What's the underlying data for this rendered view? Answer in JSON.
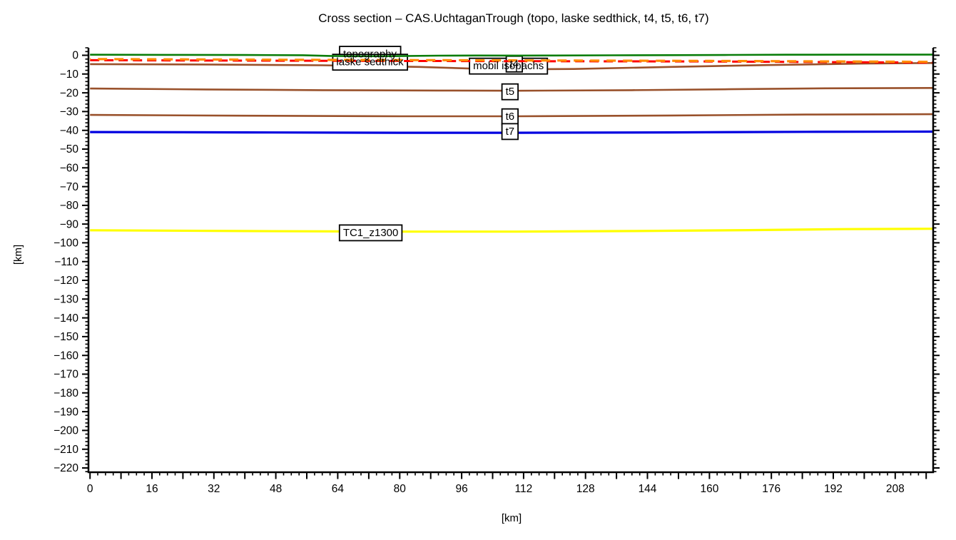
{
  "title": "Cross section – CAS.UchtaganTrough (topo, laske sedthick, t4, t5, t6, t7)",
  "chart_data": {
    "type": "line",
    "title": "Cross section – CAS.UchtaganTrough (topo, laske sedthick, t4, t5, t6, t7)",
    "xlabel": "[km]",
    "ylabel": "[km]",
    "xlim": [
      -0.4,
      217.8
    ],
    "ylim": [
      -222.3,
      4
    ],
    "grid": false,
    "legend_position": "none",
    "x_ticks": {
      "labeled_values": [
        0,
        16,
        32,
        48,
        64,
        80,
        96,
        112,
        128,
        144,
        160,
        176,
        192,
        208
      ],
      "labels": [
        "0",
        "16",
        "32",
        "48",
        "64",
        "80",
        "96",
        "112",
        "128",
        "144",
        "160",
        "176",
        "192",
        "208"
      ],
      "medium_step": 8,
      "minor_step": 2
    },
    "y_ticks": {
      "labeled_values": [
        0,
        -10,
        -20,
        -30,
        -40,
        -50,
        -60,
        -70,
        -80,
        -90,
        -100,
        -110,
        -120,
        -130,
        -140,
        -150,
        -160,
        -170,
        -180,
        -190,
        -200,
        -210,
        -220
      ],
      "labels": [
        "0",
        "−10",
        "−20",
        "−30",
        "−40",
        "−50",
        "−60",
        "−70",
        "−80",
        "−90",
        "−100",
        "−110",
        "−120",
        "−130",
        "−140",
        "−150",
        "−160",
        "−170",
        "−180",
        "−190",
        "−200",
        "−210",
        "−220"
      ],
      "minor_step": 2
    },
    "series": [
      {
        "name": "t4",
        "color": "#99512b",
        "style": "solid",
        "width": 2.6,
        "layer": "below",
        "points": [
          [
            0,
            -4.7
          ],
          [
            30,
            -4.9
          ],
          [
            60,
            -5.3
          ],
          [
            85,
            -6.2
          ],
          [
            105,
            -7.5
          ],
          [
            125,
            -7.3
          ],
          [
            150,
            -6.2
          ],
          [
            175,
            -5.2
          ],
          [
            200,
            -4.4
          ],
          [
            217.8,
            -4.1
          ]
        ]
      },
      {
        "name": "t5",
        "color": "#99512b",
        "style": "solid",
        "width": 2.6,
        "layer": "below",
        "points": [
          [
            0,
            -17.7
          ],
          [
            30,
            -18.2
          ],
          [
            60,
            -18.6
          ],
          [
            90,
            -18.8
          ],
          [
            110,
            -18.9
          ],
          [
            140,
            -18.6
          ],
          [
            165,
            -18.1
          ],
          [
            190,
            -17.6
          ],
          [
            217.8,
            -17.4
          ]
        ]
      },
      {
        "name": "t6",
        "color": "#99512b",
        "style": "solid",
        "width": 2.6,
        "layer": "below",
        "points": [
          [
            0,
            -31.8
          ],
          [
            40,
            -32.2
          ],
          [
            80,
            -32.5
          ],
          [
            110,
            -32.5
          ],
          [
            150,
            -32.1
          ],
          [
            185,
            -31.6
          ],
          [
            217.8,
            -31.4
          ]
        ]
      },
      {
        "name": "t7",
        "color": "#0000e0",
        "style": "solid",
        "width": 3.2,
        "layer": "below",
        "points": [
          [
            0,
            -40.9
          ],
          [
            40,
            -41.1
          ],
          [
            80,
            -41.3
          ],
          [
            110,
            -41.3
          ],
          [
            150,
            -41.1
          ],
          [
            185,
            -40.8
          ],
          [
            217.8,
            -40.7
          ]
        ]
      },
      {
        "name": "TC1_z1300",
        "color": "#ffff00",
        "style": "solid",
        "width": 3.2,
        "layer": "below",
        "points": [
          [
            0,
            -93.3
          ],
          [
            40,
            -93.7
          ],
          [
            80,
            -94.0
          ],
          [
            110,
            -94.0
          ],
          [
            140,
            -93.7
          ],
          [
            170,
            -93.2
          ],
          [
            195,
            -92.7
          ],
          [
            217.8,
            -92.5
          ]
        ]
      },
      {
        "name": "topography",
        "color": "#0a7d0a",
        "style": "solid",
        "width": 2.6,
        "layer": "above",
        "points": [
          [
            0,
            0.3
          ],
          [
            20,
            0.25
          ],
          [
            40,
            0.15
          ],
          [
            55,
            0.05
          ],
          [
            62,
            -0.35
          ],
          [
            70,
            -0.5
          ],
          [
            78,
            -0.45
          ],
          [
            90,
            -0.2
          ],
          [
            100,
            -0.1
          ],
          [
            110,
            -0.15
          ],
          [
            120,
            -0.1
          ],
          [
            135,
            0
          ],
          [
            150,
            0.1
          ],
          [
            165,
            0.2
          ],
          [
            180,
            0.3
          ],
          [
            200,
            0.35
          ],
          [
            217.8,
            0.35
          ]
        ]
      },
      {
        "name": "laske sedthick",
        "color": "#ff0000",
        "style": "dashed",
        "width": 3,
        "layer": "above",
        "points": [
          [
            0,
            -2.6
          ],
          [
            50,
            -2.9
          ],
          [
            105,
            -3.1
          ],
          [
            160,
            -3.3
          ],
          [
            217.8,
            -3.9
          ]
        ]
      },
      {
        "name": "mobil isopachs",
        "color": "#ff8c00",
        "style": "dashed",
        "width": 3.2,
        "layer": "above",
        "points": [
          [
            0,
            -2.0
          ],
          [
            50,
            -2.4
          ],
          [
            105,
            -2.7
          ],
          [
            160,
            -3.0
          ],
          [
            217.8,
            -3.5
          ]
        ]
      }
    ],
    "annotations": [
      {
        "text": "topography",
        "x": 72.3,
        "depth": 0.8
      },
      {
        "text": "laske sedthick",
        "x": 72.3,
        "depth": -3.4
      },
      {
        "text": "mobil isopachs",
        "x": 108.1,
        "depth": -5.5
      },
      {
        "text": "t4",
        "x": 109.6,
        "depth": -4.4
      },
      {
        "text": "t5",
        "x": 108.5,
        "depth": -19.2
      },
      {
        "text": "t6",
        "x": 108.5,
        "depth": -32.5
      },
      {
        "text": "t7",
        "x": 108.5,
        "depth": -40.4
      },
      {
        "text": "TC1_z1300",
        "x": 72.5,
        "depth": -94.4
      }
    ]
  }
}
